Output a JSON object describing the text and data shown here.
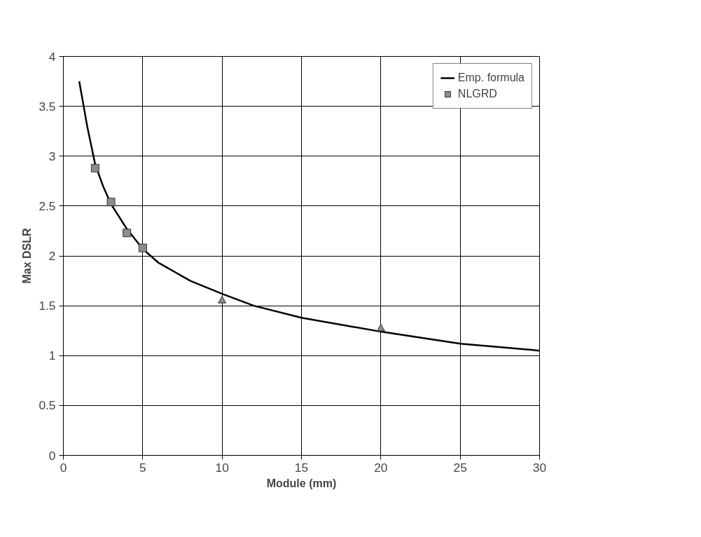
{
  "chart_data": {
    "type": "line",
    "xlabel": "Module (mm)",
    "ylabel": "Max DSLR",
    "xlim": [
      0,
      30
    ],
    "xticks": [
      0,
      5,
      10,
      15,
      20,
      25,
      30
    ],
    "ylim": [
      0,
      4
    ],
    "yticks": [
      0,
      0.5,
      1,
      1.5,
      2,
      2.5,
      3,
      3.5,
      4
    ],
    "grid": true,
    "legend": "top right",
    "series": [
      {
        "name": "Emp. formula",
        "color": "#000000",
        "line_style": "solid",
        "marker": "none",
        "x": [
          1,
          1.5,
          2,
          2.5,
          3,
          4,
          5,
          6,
          8,
          10,
          12,
          15,
          20,
          25,
          30
        ],
        "values": [
          3.75,
          3.3,
          2.92,
          2.7,
          2.52,
          2.27,
          2.07,
          1.93,
          1.75,
          1.62,
          1.5,
          1.38,
          1.24,
          1.12,
          1.05
        ]
      },
      {
        "name": "NLGRD",
        "type": "scatter",
        "color": "#8c8c8c",
        "marker": "square",
        "x": [
          2,
          3,
          4,
          5
        ],
        "values": [
          2.88,
          2.54,
          2.23,
          2.08
        ]
      },
      {
        "type": "scatter",
        "color": "#8c8c8c",
        "marker": "triangle",
        "x": [
          10,
          20
        ],
        "values": [
          1.55,
          1.27
        ]
      }
    ]
  }
}
